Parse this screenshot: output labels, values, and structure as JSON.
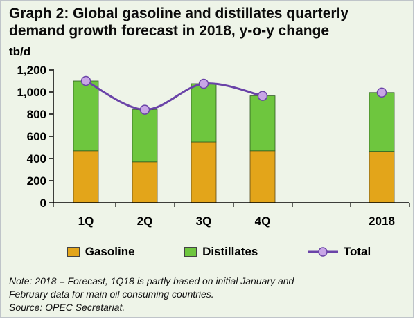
{
  "header": {
    "title": "Graph 2: Global gasoline and distillates quarterly demand growth forecast in 2018, y-o-y change",
    "unit": "tb/d"
  },
  "legend": {
    "gasoline": "Gasoline",
    "distillates": "Distillates",
    "total": "Total"
  },
  "colors": {
    "gasoline": "#e3a51a",
    "distillates": "#6ec63e",
    "total_line": "#6a43a8",
    "total_marker": "#c8a6e6",
    "axis": "#000000"
  },
  "note": {
    "line1": "Note: 2018 = Forecast, 1Q18 is partly based on initial January and",
    "line2": "February data for main oil consuming countries.",
    "line3": "Source: OPEC Secretariat."
  },
  "chart_data": {
    "type": "bar",
    "stacked": true,
    "categories": [
      "1Q",
      "2Q",
      "3Q",
      "4Q",
      "2018"
    ],
    "series": [
      {
        "name": "Gasoline",
        "values": [
          470,
          370,
          550,
          470,
          465
        ]
      },
      {
        "name": "Distillates",
        "values": [
          630,
          470,
          525,
          495,
          530
        ]
      },
      {
        "name": "Total",
        "type": "line",
        "values": [
          1100,
          840,
          1075,
          965,
          995
        ]
      }
    ],
    "ylabel": "tb/d",
    "ylim": [
      0,
      1200
    ],
    "yticks": [
      "0",
      "200",
      "400",
      "600",
      "800",
      "1,000",
      "1,200"
    ]
  }
}
